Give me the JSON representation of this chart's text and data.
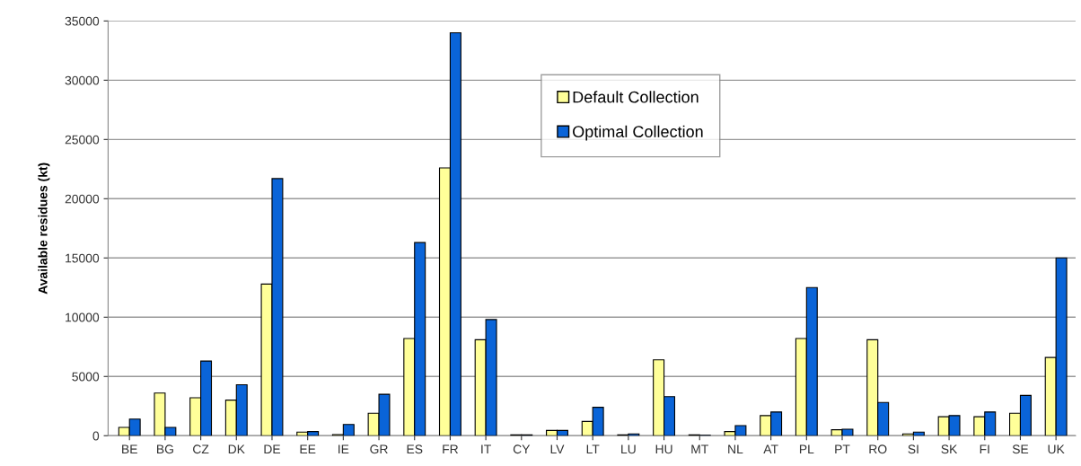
{
  "chart_data": {
    "type": "bar",
    "ylabel": "Available residues (kt)",
    "categories": [
      "BE",
      "BG",
      "CZ",
      "DK",
      "DE",
      "EE",
      "IE",
      "GR",
      "ES",
      "FR",
      "IT",
      "CY",
      "LV",
      "LT",
      "LU",
      "HU",
      "MT",
      "NL",
      "AT",
      "PL",
      "PT",
      "RO",
      "SI",
      "SK",
      "FI",
      "SE",
      "UK"
    ],
    "series": [
      {
        "name": "Default Collection",
        "color": "#ffff99",
        "values": [
          700,
          3600,
          3200,
          3000,
          12800,
          300,
          100,
          1900,
          8200,
          22600,
          8100,
          80,
          450,
          1200,
          80,
          6400,
          80,
          350,
          1700,
          8200,
          500,
          8100,
          150,
          1600,
          1600,
          1900,
          6600
        ]
      },
      {
        "name": "Optimal Collection",
        "color": "#0a64d8",
        "values": [
          1400,
          700,
          6300,
          4300,
          21700,
          350,
          950,
          3500,
          16300,
          34000,
          9800,
          80,
          450,
          2400,
          150,
          3300,
          30,
          850,
          2000,
          12500,
          550,
          2800,
          300,
          1700,
          2000,
          3400,
          15000
        ]
      }
    ],
    "ylim": [
      0,
      35000
    ],
    "yticks": [
      0,
      5000,
      10000,
      15000,
      20000,
      25000,
      30000,
      35000
    ],
    "grid": "y",
    "legend": "top"
  }
}
